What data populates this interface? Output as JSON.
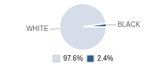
{
  "chart_data": {
    "type": "pie",
    "categories": [
      "WHITE",
      "BLACK"
    ],
    "values": [
      97.6,
      2.4
    ],
    "value_labels": [
      "97.6%",
      "2.4%"
    ],
    "colors": [
      "#d6dde8",
      "#2e5f8a"
    ],
    "legend": "bottom"
  }
}
